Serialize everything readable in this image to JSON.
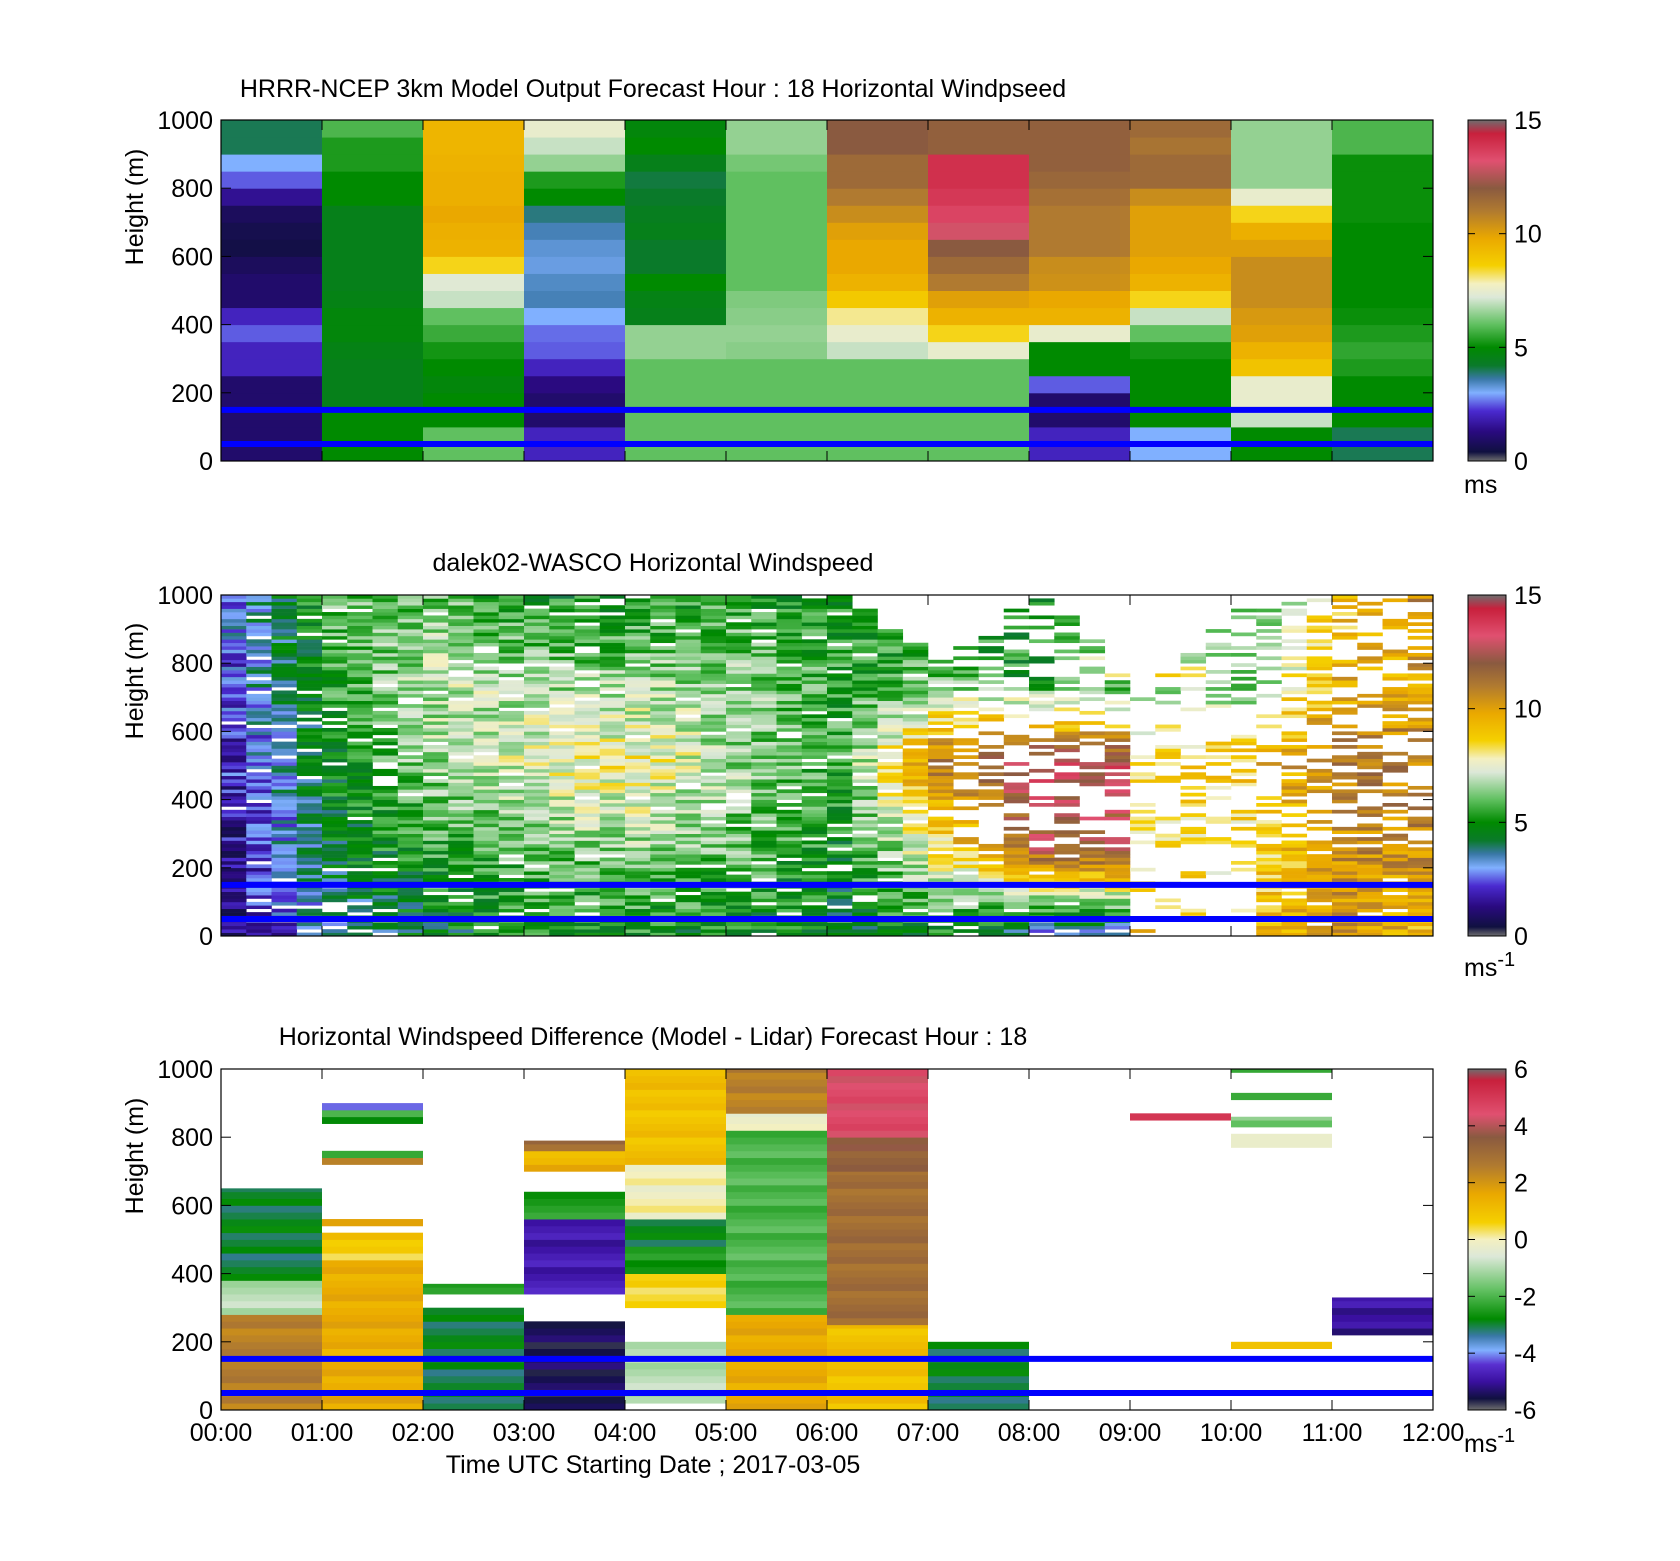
{
  "figure": {
    "xlabel": "Time UTC  Starting Date ; 2017-03-05",
    "xticks": [
      "00:00",
      "01:00",
      "02:00",
      "03:00",
      "04:00",
      "05:00",
      "06:00",
      "07:00",
      "08:00",
      "09:00",
      "10:00",
      "11:00",
      "12:00"
    ],
    "colors": {
      "blue_line": "#0000ff",
      "frame": "#000000"
    }
  },
  "chart_data": [
    {
      "type": "heatmap",
      "title": "HRRR-NCEP 3km Model Output   Forecast Hour : 18 Horizontal Windpseed",
      "ylabel": "Height (m)",
      "yticks": [
        "0",
        "200",
        "400",
        "600",
        "800",
        "1000"
      ],
      "ylim": [
        0,
        1000
      ],
      "xlim_hours": [
        0,
        12
      ],
      "colorbar": {
        "ticks": [
          "0",
          "5",
          "10",
          "15"
        ],
        "range": [
          0,
          15
        ],
        "unit": "ms",
        "unit_exp": "",
        "scale": "wind"
      },
      "reference_lines_m": [
        50,
        150
      ],
      "data_mode": "model",
      "description": "Hourly columns (00:00-12:00); values are horizontal windspeed (m/s) at heights 0-1000 m (rows bottom to top every 50 m, 20 rows).",
      "columns": [
        [
          1,
          1,
          1,
          1,
          1,
          2,
          2,
          2.5,
          2,
          1,
          1,
          0.8,
          0.5,
          0.6,
          0.8,
          1.5,
          2.5,
          3,
          4,
          4
        ],
        [
          5,
          5,
          5,
          4.5,
          4.5,
          4.5,
          4.6,
          4.8,
          4.8,
          4.6,
          4.5,
          4.5,
          4.5,
          4.5,
          4.5,
          5,
          5,
          5.3,
          5.3,
          5.8
        ],
        [
          6,
          6,
          5,
          5,
          4.8,
          5,
          5.2,
          5.6,
          6,
          7,
          7.3,
          8.5,
          9.5,
          9.6,
          9.8,
          9.6,
          9.6,
          9.5,
          9.4,
          9.4
        ],
        [
          2,
          2,
          1,
          1,
          1.3,
          2,
          2.5,
          2.6,
          3,
          3.5,
          3.4,
          3.2,
          3.3,
          3.5,
          3.8,
          5,
          5.3,
          6.5,
          7,
          7.5
        ],
        [
          6,
          6,
          6,
          6,
          6,
          6,
          6.5,
          6.5,
          4.5,
          4.6,
          5,
          4.2,
          4.2,
          4.5,
          4.4,
          4.2,
          4.1,
          4.5,
          5,
          4.8
        ],
        [
          6,
          6,
          6,
          6,
          6,
          6,
          6.4,
          6.5,
          6.4,
          6.3,
          6,
          6,
          6,
          6,
          6,
          6,
          6,
          6.2,
          6.5,
          6.5
        ],
        [
          6,
          6,
          6,
          6,
          6,
          6,
          7,
          7.5,
          8,
          8.8,
          9.5,
          9.8,
          9.8,
          10,
          10.5,
          11,
          11.5,
          11.5,
          12,
          12
        ],
        [
          6,
          6,
          6,
          6,
          6,
          6,
          7.5,
          8.5,
          9.5,
          10,
          11,
          11.5,
          12,
          13,
          13.5,
          13.8,
          14,
          14,
          11.8,
          11.8
        ],
        [
          2,
          2,
          1,
          1,
          2.5,
          5,
          5,
          7.5,
          9.5,
          9.8,
          10.4,
          10.5,
          11,
          11,
          11,
          11.3,
          11.6,
          11.8,
          11.8,
          11.8
        ],
        [
          3,
          3,
          5,
          5,
          5,
          5,
          5.2,
          6,
          7,
          8.5,
          9.5,
          9.8,
          10,
          10,
          10,
          10.5,
          11.5,
          11.5,
          11.2,
          11.5
        ],
        [
          5,
          5,
          7,
          7.5,
          7.5,
          9,
          9.5,
          10,
          10.2,
          10.5,
          10.5,
          10.5,
          10,
          9.6,
          8.5,
          7.5,
          6.5,
          6.5,
          6.5,
          6.5
        ],
        [
          4,
          4,
          5,
          5,
          5,
          5.3,
          5.5,
          5.3,
          5.1,
          5,
          5,
          5,
          5,
          5,
          5.1,
          5.1,
          5.1,
          5.1,
          5.8,
          5.8
        ]
      ]
    },
    {
      "type": "heatmap",
      "title": "dalek02-WASCO  Horizontal Windspeed",
      "ylabel": "Height (m)",
      "yticks": [
        "0",
        "200",
        "400",
        "600",
        "800",
        "1000"
      ],
      "ylim": [
        0,
        1000
      ],
      "xlim_hours": [
        0,
        12
      ],
      "colorbar": {
        "ticks": [
          "0",
          "5",
          "10",
          "15"
        ],
        "range": [
          0,
          15
        ],
        "unit": "ms",
        "unit_exp": "-1",
        "scale": "wind"
      },
      "reference_lines_m": [
        50,
        150
      ],
      "data_mode": "lidar",
      "description": "Lidar retrievals at ~15 min intervals, 10 m gates; many gaps (white) where no data. Approximate mean profile per hour shown.",
      "hourly_mean_profile": [
        [
          1.0,
          1.5,
          2.0,
          2.5,
          3.0
        ],
        [
          3.5,
          4.5,
          5.0,
          5.5,
          6.0
        ],
        [
          4.5,
          5.5,
          6.5,
          7.0,
          6.0
        ],
        [
          5.0,
          6.0,
          7.5,
          6.5,
          5.0
        ],
        [
          5.0,
          6.5,
          8.0,
          6.5,
          5.0
        ],
        [
          5.0,
          6.0,
          6.5,
          6.5,
          5.5
        ],
        [
          4.5,
          5.0,
          5.5,
          5.5,
          5.0
        ],
        [
          5.0,
          8.0,
          11.0,
          6.0,
          4.5
        ],
        [
          3.0,
          12.0,
          13.0,
          5.0,
          5.0
        ],
        [
          null,
          null,
          null,
          9.0,
          6.0
        ],
        [
          9.0,
          8.0,
          9.0,
          6.0,
          5.5
        ],
        [
          10.0,
          10.5,
          11.0,
          9.5,
          9.0
        ],
        [
          9.0,
          10.5,
          11.0,
          10.0,
          11.0
        ]
      ],
      "coverage_top_m": [
        1000,
        1000,
        1000,
        1000,
        1000,
        1000,
        1000,
        800,
        1000,
        720,
        950,
        1000,
        1000
      ]
    },
    {
      "type": "heatmap",
      "title": "Horizontal Windspeed Difference (Model - Lidar) Forecast Hour : 18",
      "ylabel": "Height (m)",
      "yticks": [
        "0",
        "200",
        "400",
        "600",
        "800",
        "1000"
      ],
      "ylim": [
        0,
        1000
      ],
      "xlim_hours": [
        0,
        12
      ],
      "colorbar": {
        "ticks": [
          "-6",
          "-4",
          "-2",
          "0",
          "2",
          "4",
          "6"
        ],
        "range": [
          -6,
          6
        ],
        "unit": "ms",
        "unit_exp": "-1",
        "scale": "diff"
      },
      "reference_lines_m": [
        50,
        150
      ],
      "data_mode": "diff",
      "description": "Difference per hourly column; bands listed as [bottom_m, top_m, value_ms]; white = no data.",
      "columns": [
        [
          [
            0,
            280,
            2.5
          ],
          [
            280,
            380,
            -1
          ],
          [
            380,
            650,
            -3
          ]
        ],
        [
          [
            0,
            440,
            1.5
          ],
          [
            440,
            500,
            0.5
          ],
          [
            500,
            520,
            1.2
          ],
          [
            540,
            560,
            1.5
          ],
          [
            720,
            740,
            2.5
          ],
          [
            740,
            760,
            -2
          ],
          [
            840,
            860,
            -3
          ],
          [
            860,
            880,
            -2
          ],
          [
            880,
            900,
            -4
          ]
        ],
        [
          [
            0,
            300,
            -3
          ],
          [
            340,
            370,
            -2.5
          ]
        ],
        [
          [
            0,
            260,
            -5.5
          ],
          [
            340,
            560,
            -4.8
          ],
          [
            560,
            640,
            -2.5
          ],
          [
            700,
            720,
            2
          ],
          [
            720,
            760,
            1
          ],
          [
            760,
            790,
            3
          ]
        ],
        [
          [
            20,
            200,
            -1
          ],
          [
            300,
            400,
            0.5
          ],
          [
            400,
            480,
            -2.5
          ],
          [
            480,
            560,
            -3
          ],
          [
            560,
            720,
            0
          ],
          [
            720,
            1000,
            1
          ]
        ],
        [
          [
            0,
            280,
            1.5
          ],
          [
            280,
            820,
            -2
          ],
          [
            820,
            870,
            -0.2
          ],
          [
            870,
            1000,
            2.5
          ]
        ],
        [
          [
            0,
            250,
            1
          ],
          [
            250,
            700,
            3
          ],
          [
            700,
            800,
            3.5
          ],
          [
            800,
            1000,
            4.5
          ]
        ],
        [
          [
            0,
            200,
            -3
          ]
        ],
        [],
        [
          [
            850,
            870,
            5
          ]
        ],
        [
          [
            180,
            200,
            1
          ],
          [
            770,
            790,
            -0.5
          ],
          [
            790,
            810,
            -0.3
          ],
          [
            830,
            860,
            -1.5
          ],
          [
            910,
            930,
            -2.5
          ],
          [
            990,
            1000,
            -2.5
          ]
        ],
        [
          [
            220,
            330,
            -5
          ]
        ]
      ]
    }
  ]
}
